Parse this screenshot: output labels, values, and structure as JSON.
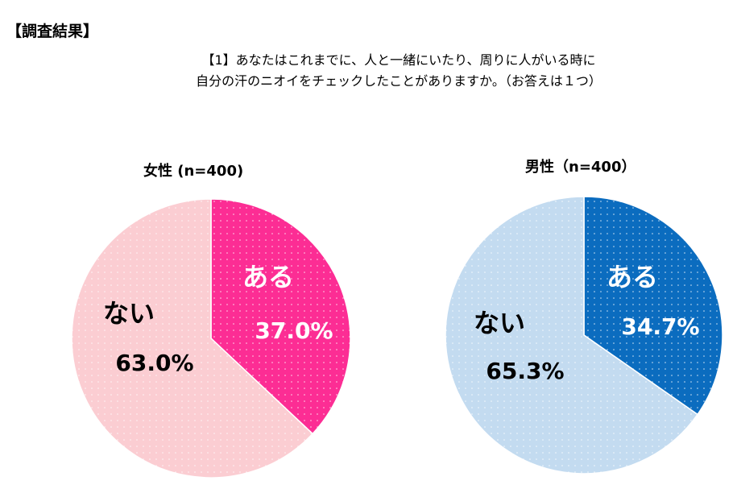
{
  "header": "【調査結果】",
  "question": [
    "【1】あなたはこれまでに、人と一緒にいたり、周りに人がいる時に",
    "自分の汗のニオイをチェックしたことがありますか。（お答えは１つ）"
  ],
  "chart_data": [
    {
      "type": "pie",
      "title": "女性 (n=400)",
      "slices": [
        {
          "label": "ある",
          "value": 37.0,
          "display": "37.0%",
          "color": "#fc2d94"
        },
        {
          "label": "ない",
          "value": 63.0,
          "display": "63.0%",
          "color": "#fbcdd2"
        }
      ]
    },
    {
      "type": "pie",
      "title": "男性（n=400）",
      "slices": [
        {
          "label": "ある",
          "value": 34.7,
          "display": "34.7%",
          "color": "#0b6cbf"
        },
        {
          "label": "ない",
          "value": 65.3,
          "display": "65.3%",
          "color": "#c3dbf0"
        }
      ]
    }
  ]
}
